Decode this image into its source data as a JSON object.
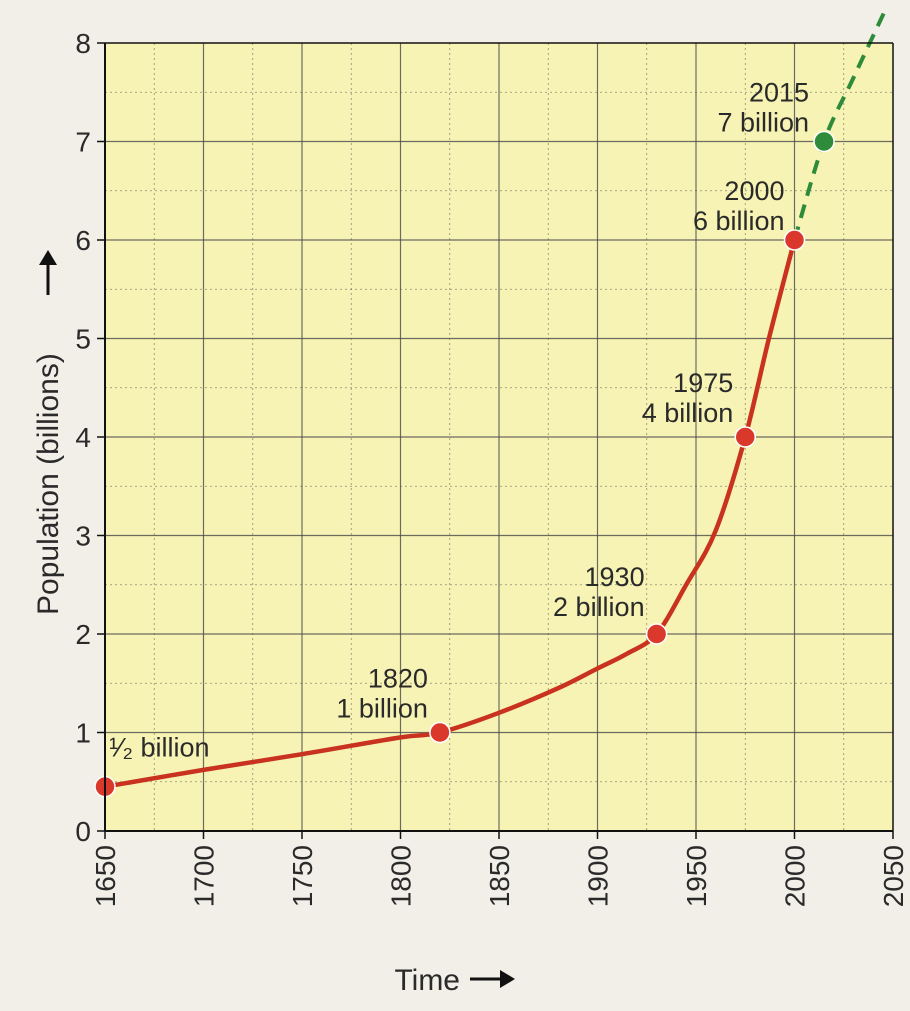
{
  "chart_data": {
    "type": "line",
    "title": "",
    "xlabel": "Time",
    "ylabel": "Population (billions)",
    "xlim": [
      1650,
      2050
    ],
    "ylim": [
      0,
      8
    ],
    "x_ticks": [
      "1650",
      "1700",
      "1750",
      "1800",
      "1850",
      "1900",
      "1950",
      "2000",
      "2050"
    ],
    "y_ticks": [
      "0",
      "1",
      "2",
      "3",
      "4",
      "5",
      "6",
      "7",
      "8"
    ],
    "grid": true,
    "series": [
      {
        "line_style": "solid",
        "color": "#c8321e",
        "x": [
          1650,
          1700,
          1750,
          1800,
          1820,
          1850,
          1880,
          1900,
          1915,
          1930,
          1945,
          1960,
          1975,
          1987,
          2000
        ],
        "y": [
          0.45,
          0.62,
          0.78,
          0.95,
          1.0,
          1.2,
          1.45,
          1.65,
          1.8,
          2.0,
          2.5,
          3.05,
          4.0,
          5.0,
          6.0
        ]
      },
      {
        "line_style": "dashed",
        "color": "#2e8b3a",
        "x": [
          2000,
          2015,
          2030,
          2050
        ],
        "y": [
          6.0,
          7.0,
          7.65,
          8.5
        ]
      }
    ],
    "markers": [
      {
        "year": 1650,
        "value": 0.45,
        "color": "#d9382a",
        "label_lines": [
          "¹⁄₂ billion"
        ]
      },
      {
        "year": 1820,
        "value": 1.0,
        "color": "#d9382a",
        "label_lines": [
          "1820",
          "1 billion"
        ]
      },
      {
        "year": 1930,
        "value": 2.0,
        "color": "#d9382a",
        "label_lines": [
          "1930",
          "2 billion"
        ]
      },
      {
        "year": 1975,
        "value": 4.0,
        "color": "#d9382a",
        "label_lines": [
          "1975",
          "4 billion"
        ]
      },
      {
        "year": 2000,
        "value": 6.0,
        "color": "#d9382a",
        "label_lines": [
          "2000",
          "6 billion"
        ]
      },
      {
        "year": 2015,
        "value": 7.0,
        "color": "#2e8b3a",
        "label_lines": [
          "2015",
          "7 billion"
        ]
      }
    ],
    "colors": {
      "plot_background": "#f6f3b4",
      "gridline": "#4a4a4a",
      "axis": "#111111",
      "text": "#2a2a2a"
    }
  }
}
